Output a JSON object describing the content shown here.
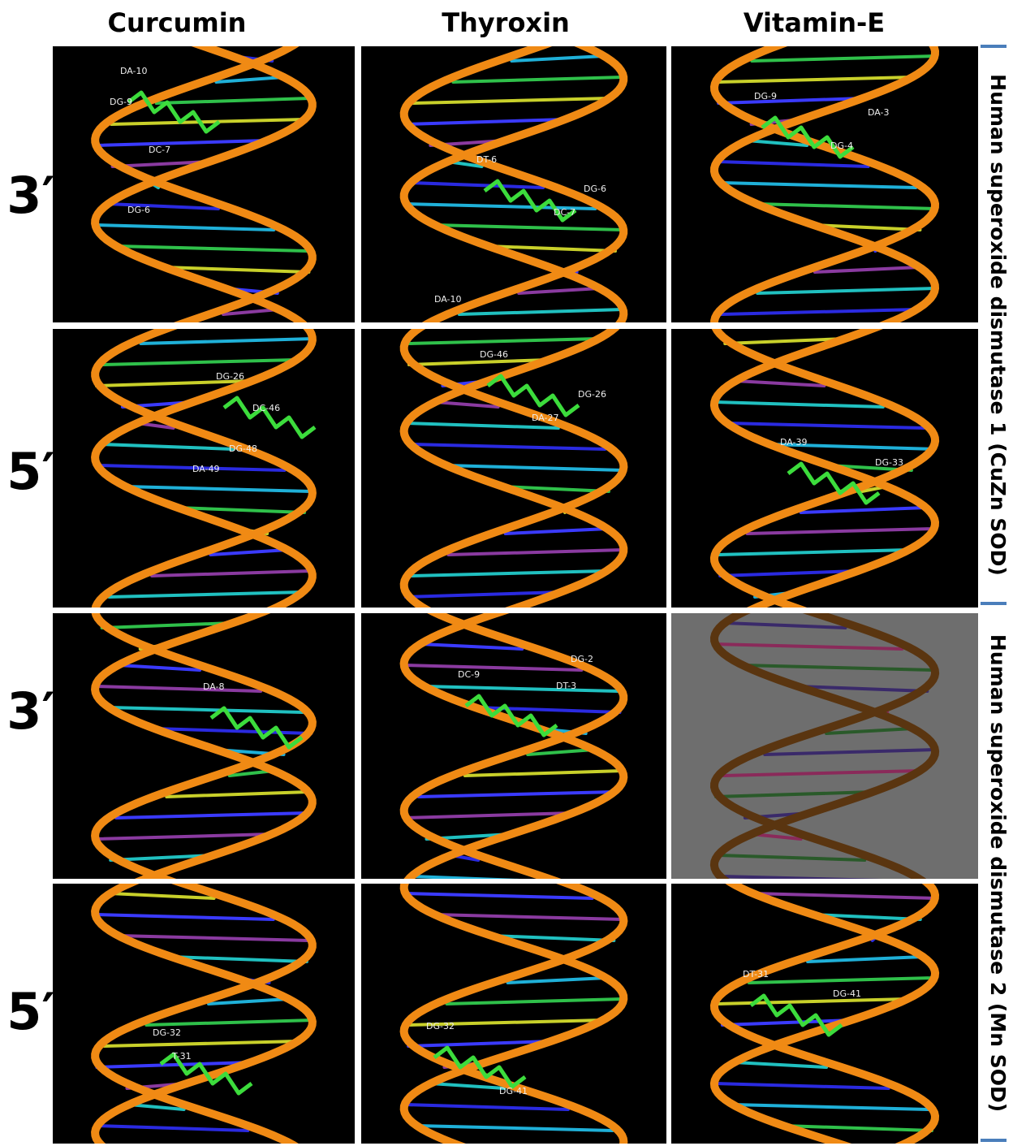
{
  "columns": [
    "Curcumin",
    "Thyroxin",
    "Vitamin-E"
  ],
  "rows": [
    {
      "label": "3′",
      "panels": [
        {
          "residues": [
            "DA-10",
            "DG-9",
            "DC-7",
            "DG-6"
          ]
        },
        {
          "residues": [
            "DT-6",
            "DG-6",
            "DC-7",
            "DA-10"
          ]
        },
        {
          "residues": [
            "DG-9",
            "DA-3",
            "DG-4"
          ]
        }
      ]
    },
    {
      "label": "5′",
      "panels": [
        {
          "residues": [
            "DG-26",
            "DC-46",
            "DG-48",
            "DA-49"
          ]
        },
        {
          "residues": [
            "DG-46",
            "DG-26",
            "DA-27"
          ]
        },
        {
          "residues": [
            "DA-39",
            "DG-33"
          ]
        }
      ]
    },
    {
      "label": "3′",
      "panels": [
        {
          "residues": [
            "DA-8"
          ]
        },
        {
          "residues": [
            "DC-9",
            "DG-2",
            "DT-3"
          ]
        },
        {
          "residues": []
        }
      ]
    },
    {
      "label": "5′",
      "panels": [
        {
          "residues": [
            "DG-32",
            "T-31"
          ]
        },
        {
          "residues": [
            "DG-32",
            "DG-41"
          ]
        },
        {
          "residues": [
            "DT-31",
            "DG-41"
          ]
        }
      ]
    }
  ],
  "side_labels": [
    "Human superoxide dismutase 1 (CuZn SOD)",
    "Human superoxide dismutase 2 (Mn SOD)"
  ]
}
